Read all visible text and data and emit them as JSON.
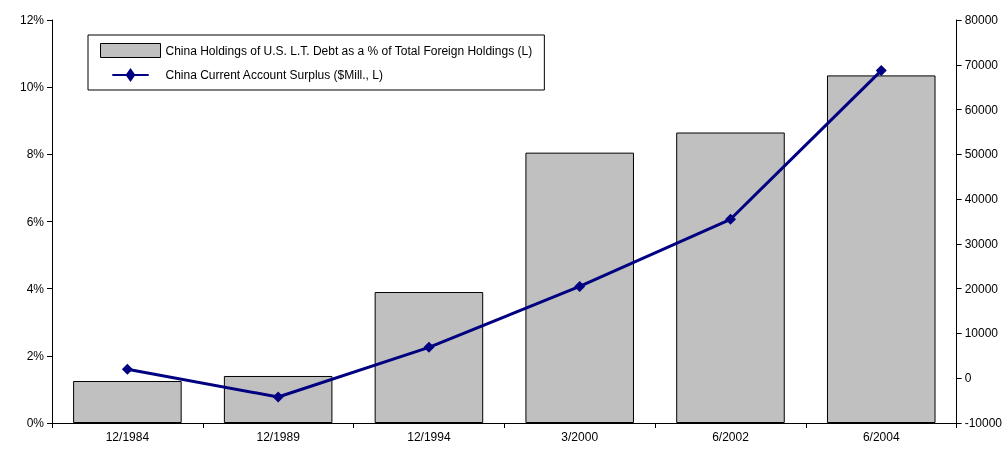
{
  "chart_data": {
    "type": "bar",
    "categories": [
      "12/1984",
      "12/1989",
      "12/1994",
      "3/2000",
      "6/2002",
      "6/2004"
    ],
    "series": [
      {
        "name": "China Holdings of U.S. L.T. Debt as a % of Total Foreign Holdings (L)",
        "color": "#c0c0c0",
        "values": [
          1.25,
          1.4,
          3.9,
          8.05,
          8.65,
          10.35
        ]
      },
      {
        "name": "China Current Account Surplus ($Mill., L)",
        "type": "line",
        "axis": "y2",
        "color": "#000080",
        "values": [
          2000,
          -4200,
          6900,
          20500,
          35500,
          68700
        ]
      }
    ],
    "ylim": [
      0,
      12
    ],
    "yticks": [
      {
        "value": 0,
        "label": "0%"
      },
      {
        "value": 2,
        "label": "2%"
      },
      {
        "value": 4,
        "label": "4%"
      },
      {
        "value": 6,
        "label": "6%"
      },
      {
        "value": 8,
        "label": "8%"
      },
      {
        "value": 10,
        "label": "10%"
      },
      {
        "value": 12,
        "label": "12%"
      }
    ],
    "y2lim": [
      -10000,
      80000
    ],
    "y2ticks": [
      -10000,
      0,
      10000,
      20000,
      30000,
      40000,
      50000,
      60000,
      70000,
      80000
    ],
    "legend": "top left",
    "grid": false,
    "marker": "diamond",
    "line_style": "solid"
  }
}
